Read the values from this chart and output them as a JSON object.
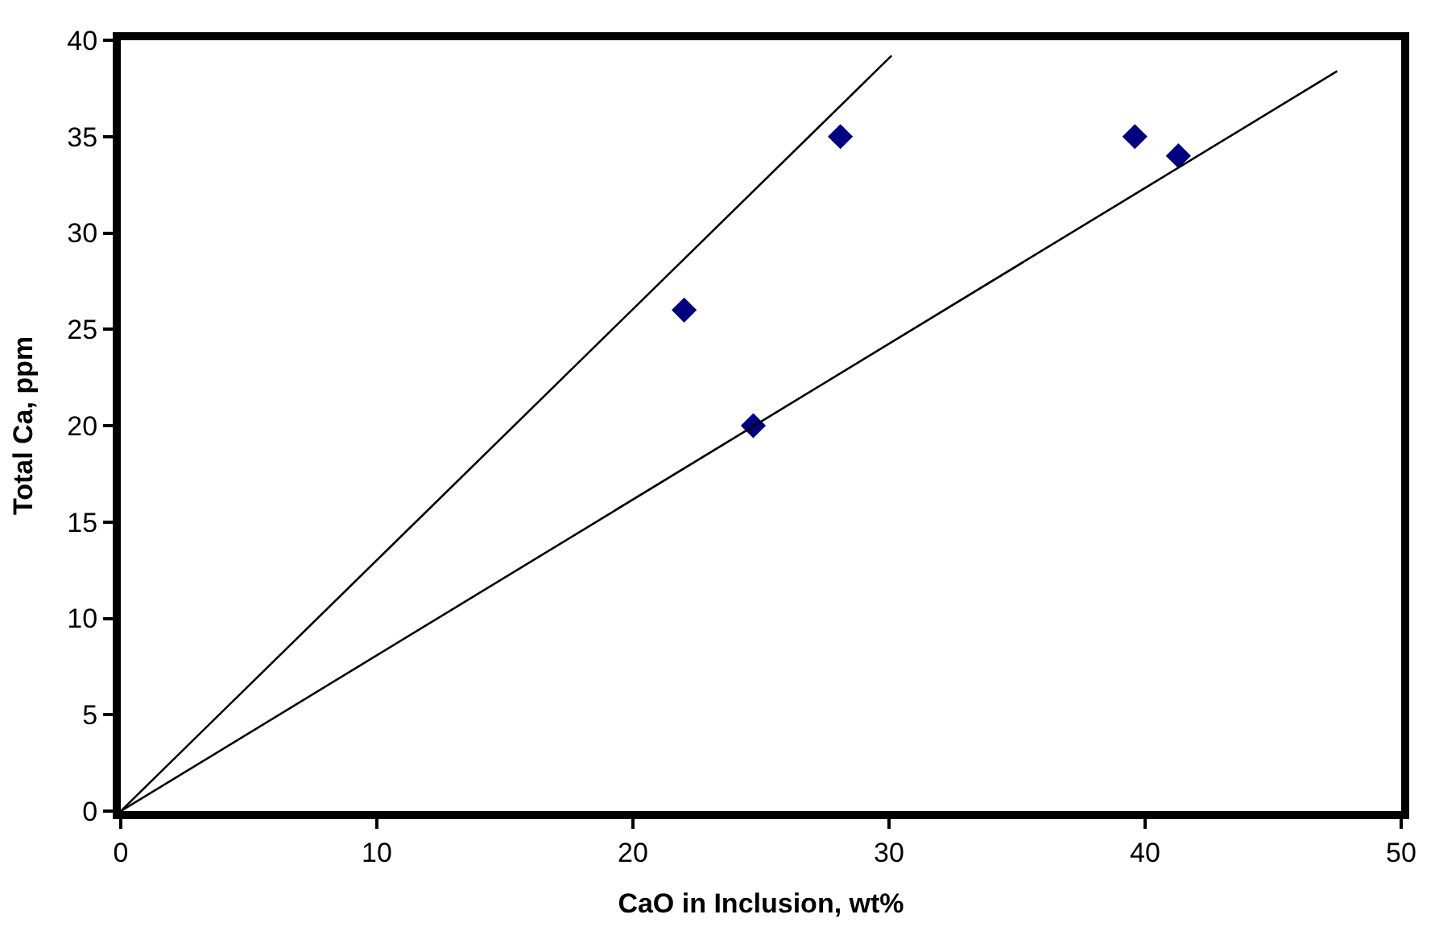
{
  "chart_data": {
    "type": "scatter",
    "xlabel": "CaO in Inclusion, wt%",
    "ylabel": "Total Ca, ppm",
    "series": [
      {
        "color": "#000080",
        "marker": "diamond",
        "x": [
          22.0,
          28.1,
          24.7,
          39.6,
          41.3
        ],
        "values": [
          26,
          35,
          20,
          35,
          34
        ]
      },
      {
        "type": "line",
        "color": "#000000",
        "marker": "none",
        "x": [
          0,
          30.1
        ],
        "values": [
          0,
          39.2
        ]
      },
      {
        "type": "line",
        "color": "#000000",
        "marker": "none",
        "x": [
          0,
          47.5
        ],
        "values": [
          0,
          38.4
        ]
      }
    ],
    "xlim": [
      0,
      50
    ],
    "xticks": [
      0,
      10,
      20,
      30,
      40,
      50
    ],
    "ylim": [
      0,
      40
    ],
    "yticks": [
      0,
      5,
      10,
      15,
      20,
      25,
      30,
      35,
      40
    ],
    "grid": false,
    "legend": false
  }
}
